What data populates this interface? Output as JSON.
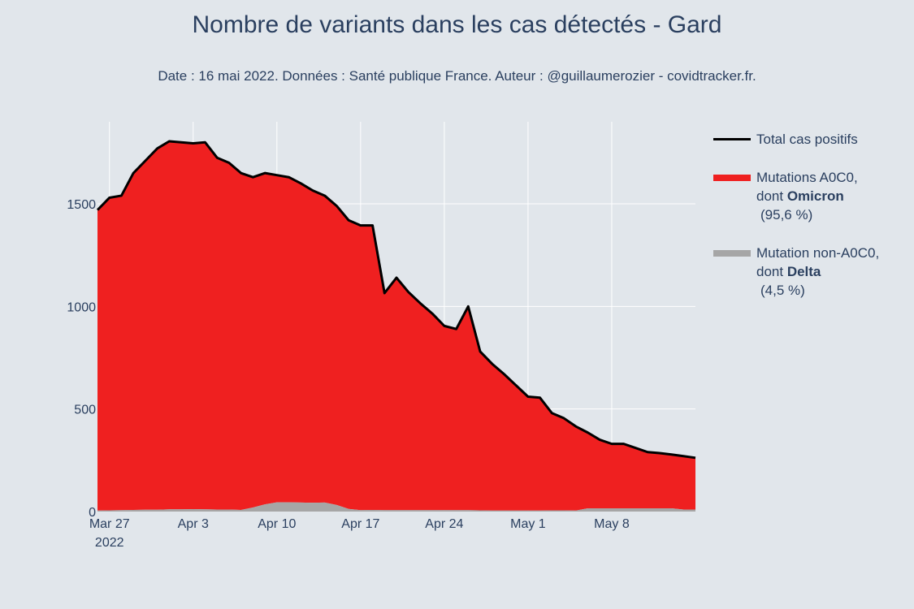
{
  "title": "Nombre de variants dans les cas détectés - Gard",
  "subtitle": "Date : 16 mai 2022. Données : Santé publique France. Auteur : @guillaumerozier - covidtracker.fr.",
  "legend": {
    "total": {
      "label": "Total cas positifs"
    },
    "omicron": {
      "line1": "Mutations A0C0,",
      "line2_prefix": "dont ",
      "line2_bold": "Omicron",
      "line3": "(95,6 %)"
    },
    "delta": {
      "line1": "Mutation non-A0C0,",
      "line2_prefix": "dont ",
      "line2_bold": "Delta",
      "line3": "(4,5 %)"
    }
  },
  "colors": {
    "background": "#e1e6eb",
    "omicron": "#ef2020",
    "delta": "#a6a6a6",
    "total": "#000000",
    "grid": "#ffffff",
    "text": "#2a3f5f"
  },
  "chart_data": {
    "type": "area",
    "x_start": "2022-03-26",
    "x_end": "2022-05-15",
    "xlim": [
      "2022-03-26",
      "2022-05-15"
    ],
    "ylim": [
      0,
      1900
    ],
    "x_ticks": [
      {
        "date": "2022-03-27",
        "label": "Mar 27",
        "sublabel": "2022"
      },
      {
        "date": "2022-04-03",
        "label": "Apr 3",
        "sublabel": ""
      },
      {
        "date": "2022-04-10",
        "label": "Apr 10",
        "sublabel": ""
      },
      {
        "date": "2022-04-17",
        "label": "Apr 17",
        "sublabel": ""
      },
      {
        "date": "2022-04-24",
        "label": "Apr 24",
        "sublabel": ""
      },
      {
        "date": "2022-05-01",
        "label": "May 1",
        "sublabel": ""
      },
      {
        "date": "2022-05-08",
        "label": "May 8",
        "sublabel": ""
      }
    ],
    "y_ticks": [
      0,
      500,
      1000,
      1500
    ],
    "grid": true,
    "legend_position": "right",
    "x": [
      "2022-03-26",
      "2022-03-27",
      "2022-03-28",
      "2022-03-29",
      "2022-03-30",
      "2022-03-31",
      "2022-04-01",
      "2022-04-02",
      "2022-04-03",
      "2022-04-04",
      "2022-04-05",
      "2022-04-06",
      "2022-04-07",
      "2022-04-08",
      "2022-04-09",
      "2022-04-10",
      "2022-04-11",
      "2022-04-12",
      "2022-04-13",
      "2022-04-14",
      "2022-04-15",
      "2022-04-16",
      "2022-04-17",
      "2022-04-18",
      "2022-04-19",
      "2022-04-20",
      "2022-04-21",
      "2022-04-22",
      "2022-04-23",
      "2022-04-24",
      "2022-04-25",
      "2022-04-26",
      "2022-04-27",
      "2022-04-28",
      "2022-04-29",
      "2022-04-30",
      "2022-05-01",
      "2022-05-02",
      "2022-05-03",
      "2022-05-04",
      "2022-05-05",
      "2022-05-06",
      "2022-05-07",
      "2022-05-08",
      "2022-05-09",
      "2022-05-10",
      "2022-05-11",
      "2022-05-12",
      "2022-05-13",
      "2022-05-14",
      "2022-05-15"
    ],
    "series": [
      {
        "name": "Total cas positifs",
        "values": [
          1470,
          1530,
          1540,
          1650,
          1710,
          1770,
          1805,
          1800,
          1795,
          1800,
          1725,
          1700,
          1650,
          1630,
          1650,
          1640,
          1630,
          1600,
          1565,
          1540,
          1490,
          1420,
          1395,
          1395,
          1065,
          1140,
          1070,
          1015,
          965,
          905,
          890,
          1000,
          780,
          720,
          670,
          615,
          560,
          555,
          480,
          455,
          415,
          385,
          350,
          330,
          330,
          310,
          290,
          285,
          278,
          270,
          262
        ]
      },
      {
        "name": "Mutations A0C0, dont Omicron",
        "values": [
          1465,
          1524,
          1533,
          1642,
          1701,
          1761,
          1794,
          1789,
          1783,
          1789,
          1715,
          1690,
          1642,
          1610,
          1615,
          1595,
          1585,
          1556,
          1522,
          1496,
          1458,
          1407,
          1388,
          1387,
          1058,
          1133,
          1063,
          1008,
          958,
          898,
          883,
          993,
          774,
          715,
          665,
          610,
          555,
          550,
          474,
          449,
          410,
          369,
          334,
          314,
          314,
          294,
          274,
          269,
          262,
          260,
          252
        ]
      },
      {
        "name": "Mutation non-A0C0, dont Delta",
        "values": [
          5,
          6,
          7,
          8,
          9,
          9,
          11,
          11,
          12,
          11,
          10,
          10,
          8,
          20,
          35,
          45,
          45,
          44,
          43,
          44,
          32,
          13,
          7,
          8,
          7,
          7,
          7,
          7,
          7,
          7,
          7,
          7,
          6,
          5,
          5,
          5,
          5,
          5,
          6,
          6,
          5,
          16,
          16,
          16,
          16,
          16,
          16,
          16,
          16,
          10,
          10
        ]
      }
    ]
  }
}
